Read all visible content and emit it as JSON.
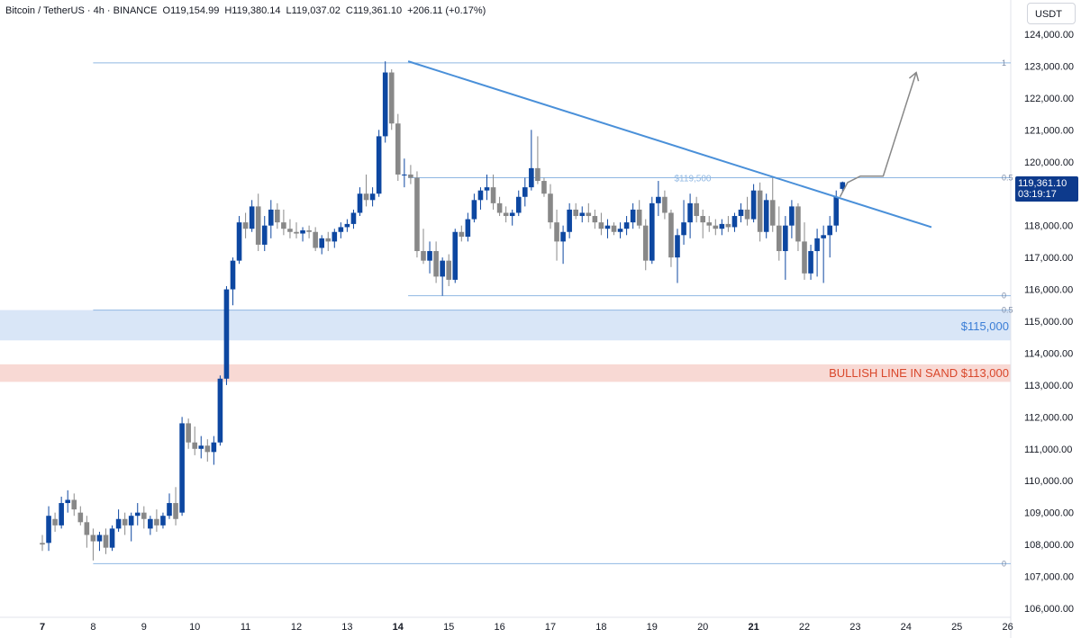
{
  "header": {
    "symbol": "Bitcoin / TetherUS · 4h · BINANCE",
    "open": "O119,154.99",
    "high": "H119,380.14",
    "low": "L119,037.02",
    "close": "C119,361.10",
    "change": "+206.11 (+0.17%)"
  },
  "currency_button": "USDT",
  "last_price": {
    "value": "119,361.10",
    "countdown": "03:19:17",
    "color": "#0d3a8c"
  },
  "zones": {
    "support_label": "$115,000",
    "support_color": "#d9e6f7",
    "sand_label": "BULLISH LINE IN SAND $113,000",
    "sand_color": "#f8d9d4"
  },
  "colors": {
    "up": "#0d47a1",
    "down": "#888888",
    "trendline": "#4a90d9",
    "level": "#8fb7e2"
  },
  "chart_data": {
    "type": "candlestick",
    "ylim": [
      106000,
      124000
    ],
    "y_ticks": [
      "106,000.00",
      "107,000.00",
      "108,000.00",
      "109,000.00",
      "110,000.00",
      "111,000.00",
      "112,000.00",
      "113,000.00",
      "114,000.00",
      "115,000.00",
      "116,000.00",
      "117,000.00",
      "118,000.00",
      "119,000.00",
      "120,000.00",
      "121,000.00",
      "122,000.00",
      "123,000.00",
      "124,000.00"
    ],
    "x_ticks": [
      {
        "label": "7",
        "day": 7,
        "bold": true
      },
      {
        "label": "8",
        "day": 8
      },
      {
        "label": "9",
        "day": 9
      },
      {
        "label": "10",
        "day": 10
      },
      {
        "label": "11",
        "day": 11
      },
      {
        "label": "12",
        "day": 12
      },
      {
        "label": "13",
        "day": 13
      },
      {
        "label": "14",
        "day": 14,
        "bold": true
      },
      {
        "label": "15",
        "day": 15
      },
      {
        "label": "16",
        "day": 16
      },
      {
        "label": "17",
        "day": 17
      },
      {
        "label": "18",
        "day": 18
      },
      {
        "label": "19",
        "day": 19
      },
      {
        "label": "20",
        "day": 20
      },
      {
        "label": "21",
        "day": 21,
        "bold": true
      },
      {
        "label": "22",
        "day": 22
      },
      {
        "label": "23",
        "day": 23
      },
      {
        "label": "24",
        "day": 24
      },
      {
        "label": "25",
        "day": 25
      },
      {
        "label": "26",
        "day": 26
      }
    ],
    "fib_levels": [
      {
        "label": "1",
        "price": 123100,
        "from_day": 8.0
      },
      {
        "label": "0.5",
        "price": 119500,
        "from_day": 14.2
      },
      {
        "label": "0",
        "price": 115800,
        "from_day": 14.2
      },
      {
        "label": "0.5",
        "price": 115350,
        "from_day": 8.0
      },
      {
        "label": "0",
        "price": 107400,
        "from_day": 8.0
      }
    ],
    "level_annotation": "$119,500",
    "support_zone": [
      114400,
      115350
    ],
    "sand_zone": [
      113100,
      113650
    ],
    "trendline": {
      "from": {
        "day": 14.2,
        "price": 123150
      },
      "to": {
        "day": 24.5,
        "price": 117950
      }
    },
    "projection": [
      {
        "day": 22.7,
        "price": 118900
      },
      {
        "day": 22.85,
        "price": 119350
      },
      {
        "day": 23.1,
        "price": 119550
      },
      {
        "day": 23.55,
        "price": 119550
      },
      {
        "day": 24.2,
        "price": 122800
      }
    ],
    "candles": [
      {
        "d": 7.0,
        "o": 108050,
        "h": 108300,
        "l": 107800,
        "c": 108000
      },
      {
        "d": 7.125,
        "o": 108050,
        "h": 109200,
        "l": 107800,
        "c": 108900
      },
      {
        "d": 7.25,
        "o": 108800,
        "h": 109000,
        "l": 108400,
        "c": 108600
      },
      {
        "d": 7.375,
        "o": 108600,
        "h": 109500,
        "l": 108500,
        "c": 109300
      },
      {
        "d": 7.5,
        "o": 109300,
        "h": 109700,
        "l": 109000,
        "c": 109400
      },
      {
        "d": 7.625,
        "o": 109400,
        "h": 109600,
        "l": 108900,
        "c": 109100
      },
      {
        "d": 7.75,
        "o": 109000,
        "h": 109200,
        "l": 108600,
        "c": 108700
      },
      {
        "d": 7.875,
        "o": 108700,
        "h": 108900,
        "l": 107900,
        "c": 108300
      },
      {
        "d": 8.0,
        "o": 108300,
        "h": 108500,
        "l": 107500,
        "c": 108100
      },
      {
        "d": 8.125,
        "o": 108100,
        "h": 108400,
        "l": 107800,
        "c": 108300
      },
      {
        "d": 8.25,
        "o": 108300,
        "h": 108500,
        "l": 107700,
        "c": 107900
      },
      {
        "d": 8.375,
        "o": 107900,
        "h": 108600,
        "l": 107800,
        "c": 108500
      },
      {
        "d": 8.5,
        "o": 108500,
        "h": 109100,
        "l": 108400,
        "c": 108800
      },
      {
        "d": 8.625,
        "o": 108800,
        "h": 109000,
        "l": 108300,
        "c": 108600
      },
      {
        "d": 8.75,
        "o": 108600,
        "h": 109000,
        "l": 108100,
        "c": 108900
      },
      {
        "d": 8.875,
        "o": 108900,
        "h": 109300,
        "l": 108600,
        "c": 109000
      },
      {
        "d": 9.0,
        "o": 109000,
        "h": 109200,
        "l": 108500,
        "c": 108800
      },
      {
        "d": 9.125,
        "o": 108500,
        "h": 108900,
        "l": 108300,
        "c": 108800
      },
      {
        "d": 9.25,
        "o": 108800,
        "h": 109100,
        "l": 108400,
        "c": 108600
      },
      {
        "d": 9.375,
        "o": 108600,
        "h": 109000,
        "l": 108500,
        "c": 108900
      },
      {
        "d": 9.5,
        "o": 108900,
        "h": 109600,
        "l": 108800,
        "c": 109300
      },
      {
        "d": 9.625,
        "o": 109300,
        "h": 109800,
        "l": 108600,
        "c": 108800
      },
      {
        "d": 9.75,
        "o": 109000,
        "h": 112000,
        "l": 108900,
        "c": 111800
      },
      {
        "d": 9.875,
        "o": 111800,
        "h": 111950,
        "l": 111000,
        "c": 111200
      },
      {
        "d": 10.0,
        "o": 111200,
        "h": 111700,
        "l": 110800,
        "c": 111000
      },
      {
        "d": 10.125,
        "o": 111000,
        "h": 111400,
        "l": 110700,
        "c": 111100
      },
      {
        "d": 10.25,
        "o": 111100,
        "h": 111300,
        "l": 110600,
        "c": 110900
      },
      {
        "d": 10.375,
        "o": 110900,
        "h": 111400,
        "l": 110500,
        "c": 111200
      },
      {
        "d": 10.5,
        "o": 111200,
        "h": 113300,
        "l": 111100,
        "c": 113200
      },
      {
        "d": 10.625,
        "o": 113200,
        "h": 116100,
        "l": 113000,
        "c": 116000
      },
      {
        "d": 10.75,
        "o": 116000,
        "h": 117000,
        "l": 115500,
        "c": 116900
      },
      {
        "d": 10.875,
        "o": 116900,
        "h": 118300,
        "l": 116800,
        "c": 118100
      },
      {
        "d": 11.0,
        "o": 118100,
        "h": 118400,
        "l": 117600,
        "c": 117900
      },
      {
        "d": 11.125,
        "o": 117900,
        "h": 118800,
        "l": 117800,
        "c": 118600
      },
      {
        "d": 11.25,
        "o": 118600,
        "h": 119000,
        "l": 117200,
        "c": 117400
      },
      {
        "d": 11.375,
        "o": 117400,
        "h": 118300,
        "l": 117200,
        "c": 118000
      },
      {
        "d": 11.5,
        "o": 118000,
        "h": 118800,
        "l": 117600,
        "c": 118500
      },
      {
        "d": 11.625,
        "o": 118500,
        "h": 118700,
        "l": 117900,
        "c": 118100
      },
      {
        "d": 11.75,
        "o": 118100,
        "h": 118500,
        "l": 117700,
        "c": 117900
      },
      {
        "d": 11.875,
        "o": 117900,
        "h": 118200,
        "l": 117600,
        "c": 117800
      },
      {
        "d": 12.0,
        "o": 117800,
        "h": 118100,
        "l": 117600,
        "c": 117750
      },
      {
        "d": 12.125,
        "o": 117750,
        "h": 117950,
        "l": 117500,
        "c": 117850
      },
      {
        "d": 12.25,
        "o": 117850,
        "h": 118000,
        "l": 117600,
        "c": 117800
      },
      {
        "d": 12.375,
        "o": 117800,
        "h": 117950,
        "l": 117200,
        "c": 117300
      },
      {
        "d": 12.5,
        "o": 117300,
        "h": 117700,
        "l": 117100,
        "c": 117600
      },
      {
        "d": 12.625,
        "o": 117600,
        "h": 117800,
        "l": 117200,
        "c": 117500
      },
      {
        "d": 12.75,
        "o": 117500,
        "h": 117900,
        "l": 117300,
        "c": 117800
      },
      {
        "d": 12.875,
        "o": 117800,
        "h": 118100,
        "l": 117600,
        "c": 117950
      },
      {
        "d": 13.0,
        "o": 117950,
        "h": 118200,
        "l": 117800,
        "c": 118050
      },
      {
        "d": 13.125,
        "o": 118050,
        "h": 118500,
        "l": 117900,
        "c": 118400
      },
      {
        "d": 13.25,
        "o": 118400,
        "h": 119200,
        "l": 118300,
        "c": 119000
      },
      {
        "d": 13.375,
        "o": 119000,
        "h": 119600,
        "l": 118600,
        "c": 118800
      },
      {
        "d": 13.5,
        "o": 118800,
        "h": 119200,
        "l": 118600,
        "c": 119000
      },
      {
        "d": 13.625,
        "o": 119000,
        "h": 121000,
        "l": 118900,
        "c": 120800
      },
      {
        "d": 13.75,
        "o": 120800,
        "h": 123150,
        "l": 120600,
        "c": 122800
      },
      {
        "d": 13.875,
        "o": 122800,
        "h": 122900,
        "l": 121000,
        "c": 121200
      },
      {
        "d": 14.0,
        "o": 121200,
        "h": 121500,
        "l": 119400,
        "c": 119600
      },
      {
        "d": 14.125,
        "o": 119600,
        "h": 120100,
        "l": 119200,
        "c": 119600
      },
      {
        "d": 14.25,
        "o": 119600,
        "h": 119900,
        "l": 119300,
        "c": 119500
      },
      {
        "d": 14.375,
        "o": 119500,
        "h": 119700,
        "l": 117000,
        "c": 117200
      },
      {
        "d": 14.5,
        "o": 117200,
        "h": 117900,
        "l": 116800,
        "c": 116900
      },
      {
        "d": 14.625,
        "o": 116900,
        "h": 117500,
        "l": 116500,
        "c": 117200
      },
      {
        "d": 14.75,
        "o": 117200,
        "h": 117500,
        "l": 116200,
        "c": 116400
      },
      {
        "d": 14.875,
        "o": 116400,
        "h": 117000,
        "l": 115800,
        "c": 116900
      },
      {
        "d": 15.0,
        "o": 116900,
        "h": 117100,
        "l": 116100,
        "c": 116300
      },
      {
        "d": 15.125,
        "o": 116300,
        "h": 117900,
        "l": 116200,
        "c": 117800
      },
      {
        "d": 15.25,
        "o": 117800,
        "h": 118000,
        "l": 117500,
        "c": 117650
      },
      {
        "d": 15.375,
        "o": 117650,
        "h": 118400,
        "l": 117500,
        "c": 118200
      },
      {
        "d": 15.5,
        "o": 118200,
        "h": 119000,
        "l": 118100,
        "c": 118800
      },
      {
        "d": 15.625,
        "o": 118800,
        "h": 119200,
        "l": 118500,
        "c": 119100
      },
      {
        "d": 15.75,
        "o": 119100,
        "h": 119600,
        "l": 118800,
        "c": 119200
      },
      {
        "d": 15.875,
        "o": 119200,
        "h": 119600,
        "l": 118500,
        "c": 118700
      },
      {
        "d": 16.0,
        "o": 118700,
        "h": 118900,
        "l": 118300,
        "c": 118400
      },
      {
        "d": 16.125,
        "o": 118400,
        "h": 118600,
        "l": 118100,
        "c": 118300
      },
      {
        "d": 16.25,
        "o": 118300,
        "h": 118500,
        "l": 118000,
        "c": 118400
      },
      {
        "d": 16.375,
        "o": 118400,
        "h": 119100,
        "l": 118300,
        "c": 118900
      },
      {
        "d": 16.5,
        "o": 118900,
        "h": 119500,
        "l": 118600,
        "c": 119200
      },
      {
        "d": 16.625,
        "o": 119200,
        "h": 121000,
        "l": 119100,
        "c": 119800
      },
      {
        "d": 16.75,
        "o": 119800,
        "h": 120800,
        "l": 119300,
        "c": 119400
      },
      {
        "d": 16.875,
        "o": 119400,
        "h": 119500,
        "l": 118900,
        "c": 119000
      },
      {
        "d": 17.0,
        "o": 119000,
        "h": 119300,
        "l": 117900,
        "c": 118100
      },
      {
        "d": 17.125,
        "o": 118100,
        "h": 118500,
        "l": 116900,
        "c": 117500
      },
      {
        "d": 17.25,
        "o": 117500,
        "h": 118000,
        "l": 116800,
        "c": 117800
      },
      {
        "d": 17.375,
        "o": 117800,
        "h": 118700,
        "l": 117600,
        "c": 118500
      },
      {
        "d": 17.5,
        "o": 118500,
        "h": 118700,
        "l": 118200,
        "c": 118300
      },
      {
        "d": 17.625,
        "o": 118300,
        "h": 118600,
        "l": 118100,
        "c": 118400
      },
      {
        "d": 17.75,
        "o": 118400,
        "h": 118700,
        "l": 118100,
        "c": 118300
      },
      {
        "d": 17.875,
        "o": 118300,
        "h": 118500,
        "l": 117900,
        "c": 118100
      },
      {
        "d": 18.0,
        "o": 118100,
        "h": 118400,
        "l": 117700,
        "c": 117900
      },
      {
        "d": 18.125,
        "o": 117900,
        "h": 118200,
        "l": 117600,
        "c": 118000
      },
      {
        "d": 18.25,
        "o": 118000,
        "h": 118100,
        "l": 117700,
        "c": 117800
      },
      {
        "d": 18.375,
        "o": 117800,
        "h": 118100,
        "l": 117600,
        "c": 117900
      },
      {
        "d": 18.5,
        "o": 117900,
        "h": 118300,
        "l": 117700,
        "c": 118100
      },
      {
        "d": 18.625,
        "o": 118100,
        "h": 118700,
        "l": 117900,
        "c": 118500
      },
      {
        "d": 18.75,
        "o": 118500,
        "h": 118800,
        "l": 117900,
        "c": 118000
      },
      {
        "d": 18.875,
        "o": 118000,
        "h": 118200,
        "l": 116600,
        "c": 116900
      },
      {
        "d": 19.0,
        "o": 116900,
        "h": 118900,
        "l": 116800,
        "c": 118700
      },
      {
        "d": 19.125,
        "o": 118700,
        "h": 119400,
        "l": 118300,
        "c": 118900
      },
      {
        "d": 19.25,
        "o": 118900,
        "h": 119100,
        "l": 118200,
        "c": 118400
      },
      {
        "d": 19.375,
        "o": 118400,
        "h": 118500,
        "l": 116700,
        "c": 117000
      },
      {
        "d": 19.5,
        "o": 117000,
        "h": 117900,
        "l": 116200,
        "c": 117700
      },
      {
        "d": 19.625,
        "o": 117700,
        "h": 118800,
        "l": 117400,
        "c": 118100
      },
      {
        "d": 19.75,
        "o": 118100,
        "h": 119000,
        "l": 117600,
        "c": 118700
      },
      {
        "d": 19.875,
        "o": 118700,
        "h": 118900,
        "l": 118100,
        "c": 118300
      },
      {
        "d": 20.0,
        "o": 118300,
        "h": 118500,
        "l": 117600,
        "c": 118100
      },
      {
        "d": 20.125,
        "o": 118100,
        "h": 118300,
        "l": 117800,
        "c": 118000
      },
      {
        "d": 20.25,
        "o": 118000,
        "h": 118200,
        "l": 117700,
        "c": 117900
      },
      {
        "d": 20.375,
        "o": 117900,
        "h": 118200,
        "l": 117700,
        "c": 118050
      },
      {
        "d": 20.5,
        "o": 118050,
        "h": 118300,
        "l": 117800,
        "c": 117950
      },
      {
        "d": 20.625,
        "o": 117950,
        "h": 118400,
        "l": 117800,
        "c": 118300
      },
      {
        "d": 20.75,
        "o": 118300,
        "h": 118700,
        "l": 118100,
        "c": 118500
      },
      {
        "d": 20.875,
        "o": 118500,
        "h": 118900,
        "l": 118000,
        "c": 118200
      },
      {
        "d": 21.0,
        "o": 118200,
        "h": 119300,
        "l": 118100,
        "c": 119100
      },
      {
        "d": 21.125,
        "o": 119100,
        "h": 119350,
        "l": 117500,
        "c": 117800
      },
      {
        "d": 21.25,
        "o": 117800,
        "h": 119000,
        "l": 117600,
        "c": 118800
      },
      {
        "d": 21.375,
        "o": 118800,
        "h": 119500,
        "l": 117800,
        "c": 118000
      },
      {
        "d": 21.5,
        "o": 118000,
        "h": 118600,
        "l": 116900,
        "c": 117200
      },
      {
        "d": 21.625,
        "o": 117200,
        "h": 118300,
        "l": 116300,
        "c": 118000
      },
      {
        "d": 21.75,
        "o": 118000,
        "h": 118800,
        "l": 117600,
        "c": 118600
      },
      {
        "d": 21.875,
        "o": 118600,
        "h": 118700,
        "l": 117200,
        "c": 117500
      },
      {
        "d": 22.0,
        "o": 117500,
        "h": 118100,
        "l": 116300,
        "c": 116500
      },
      {
        "d": 22.125,
        "o": 116500,
        "h": 117400,
        "l": 116300,
        "c": 117200
      },
      {
        "d": 22.25,
        "o": 117200,
        "h": 117900,
        "l": 116400,
        "c": 117600
      },
      {
        "d": 22.375,
        "o": 117600,
        "h": 118000,
        "l": 116200,
        "c": 117700
      },
      {
        "d": 22.5,
        "o": 117700,
        "h": 118300,
        "l": 117000,
        "c": 118000
      },
      {
        "d": 22.625,
        "o": 118000,
        "h": 119100,
        "l": 117800,
        "c": 118900
      },
      {
        "d": 22.75,
        "o": 119150,
        "h": 119380,
        "l": 119040,
        "c": 119360
      }
    ]
  }
}
